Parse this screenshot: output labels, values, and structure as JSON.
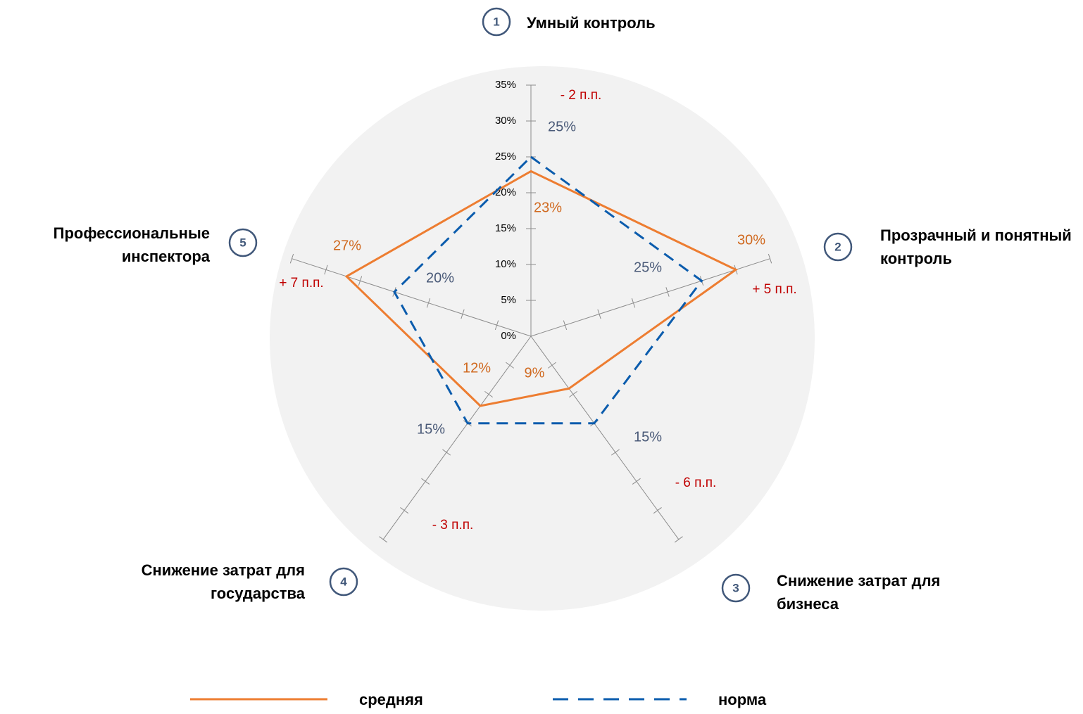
{
  "chart_data": {
    "type": "radar",
    "categories": [
      "Умный контроль",
      "Прозрачный и понятный контроль",
      "Снижение затрат для бизнеса",
      "Снижение затрат для государства",
      "Профессиональные инспектора"
    ],
    "category_numbers": [
      1,
      2,
      3,
      4,
      5
    ],
    "series": [
      {
        "name": "средняя",
        "color": "#ED7D31",
        "dash": "solid",
        "values": [
          23,
          30,
          9,
          12,
          27
        ],
        "value_labels": [
          "23%",
          "30%",
          "9%",
          "12%",
          "27%"
        ]
      },
      {
        "name": "норма",
        "color": "#0B5CAD",
        "dash": "dashed",
        "values": [
          25,
          25,
          15,
          15,
          20
        ],
        "value_labels": [
          "25%",
          "25%",
          "15%",
          "15%",
          "20%"
        ]
      }
    ],
    "annotations": [
      "- 2 п.п.",
      "+ 5 п.п.",
      "- 6 п.п.",
      "- 3 п.п.",
      "+ 7 п.п."
    ],
    "ylim": [
      0,
      35
    ],
    "yticks": [
      {
        "value": 0,
        "label": "0%"
      },
      {
        "value": 5,
        "label": "5%"
      },
      {
        "value": 10,
        "label": "10%"
      },
      {
        "value": 15,
        "label": "15%"
      },
      {
        "value": 20,
        "label": "20%"
      },
      {
        "value": 25,
        "label": "25%"
      },
      {
        "value": 30,
        "label": "30%"
      },
      {
        "value": 35,
        "label": "35%"
      }
    ]
  }
}
